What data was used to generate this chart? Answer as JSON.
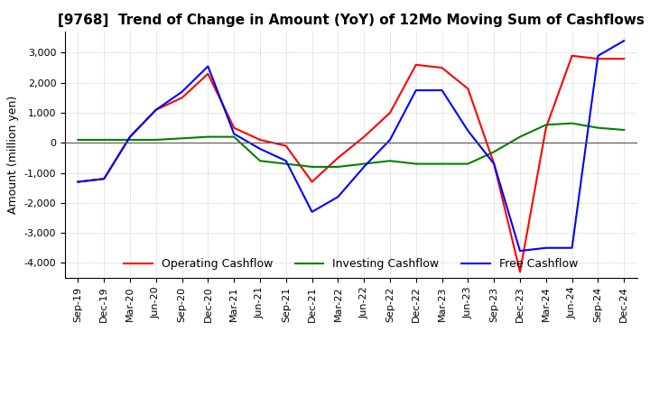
{
  "title": "[9768]  Trend of Change in Amount (YoY) of 12Mo Moving Sum of Cashflows",
  "ylabel": "Amount (million yen)",
  "x_labels": [
    "Sep-19",
    "Dec-19",
    "Mar-20",
    "Jun-20",
    "Sep-20",
    "Dec-20",
    "Mar-21",
    "Jun-21",
    "Sep-21",
    "Dec-21",
    "Mar-22",
    "Jun-22",
    "Sep-22",
    "Dec-22",
    "Mar-23",
    "Jun-23",
    "Sep-23",
    "Dec-23",
    "Mar-24",
    "Jun-24",
    "Sep-24",
    "Dec-24"
  ],
  "operating": [
    -1300,
    -1200,
    200,
    1100,
    1500,
    2300,
    500,
    100,
    -100,
    -1300,
    -500,
    200,
    1000,
    2600,
    2500,
    1800,
    -700,
    -4300,
    500,
    2900,
    2800,
    2800
  ],
  "investing": [
    100,
    100,
    100,
    100,
    150,
    200,
    200,
    -600,
    -700,
    -800,
    -800,
    -700,
    -600,
    -700,
    -700,
    -700,
    -300,
    200,
    600,
    650,
    500,
    430
  ],
  "free": [
    -1300,
    -1200,
    200,
    1100,
    1700,
    2550,
    300,
    -200,
    -600,
    -2300,
    -1800,
    -800,
    100,
    1750,
    1750,
    400,
    -700,
    -3600,
    -3500,
    -3500,
    2900,
    3400
  ],
  "ylim": [
    -4500,
    3700
  ],
  "yticks": [
    -4000,
    -3000,
    -2000,
    -1000,
    0,
    1000,
    2000,
    3000
  ],
  "operating_color": "#ff0000",
  "investing_color": "#008000",
  "free_color": "#0000ff",
  "grid_color": "#aaaaaa",
  "background_color": "#ffffff",
  "title_fontsize": 11,
  "label_fontsize": 9,
  "tick_fontsize": 8
}
